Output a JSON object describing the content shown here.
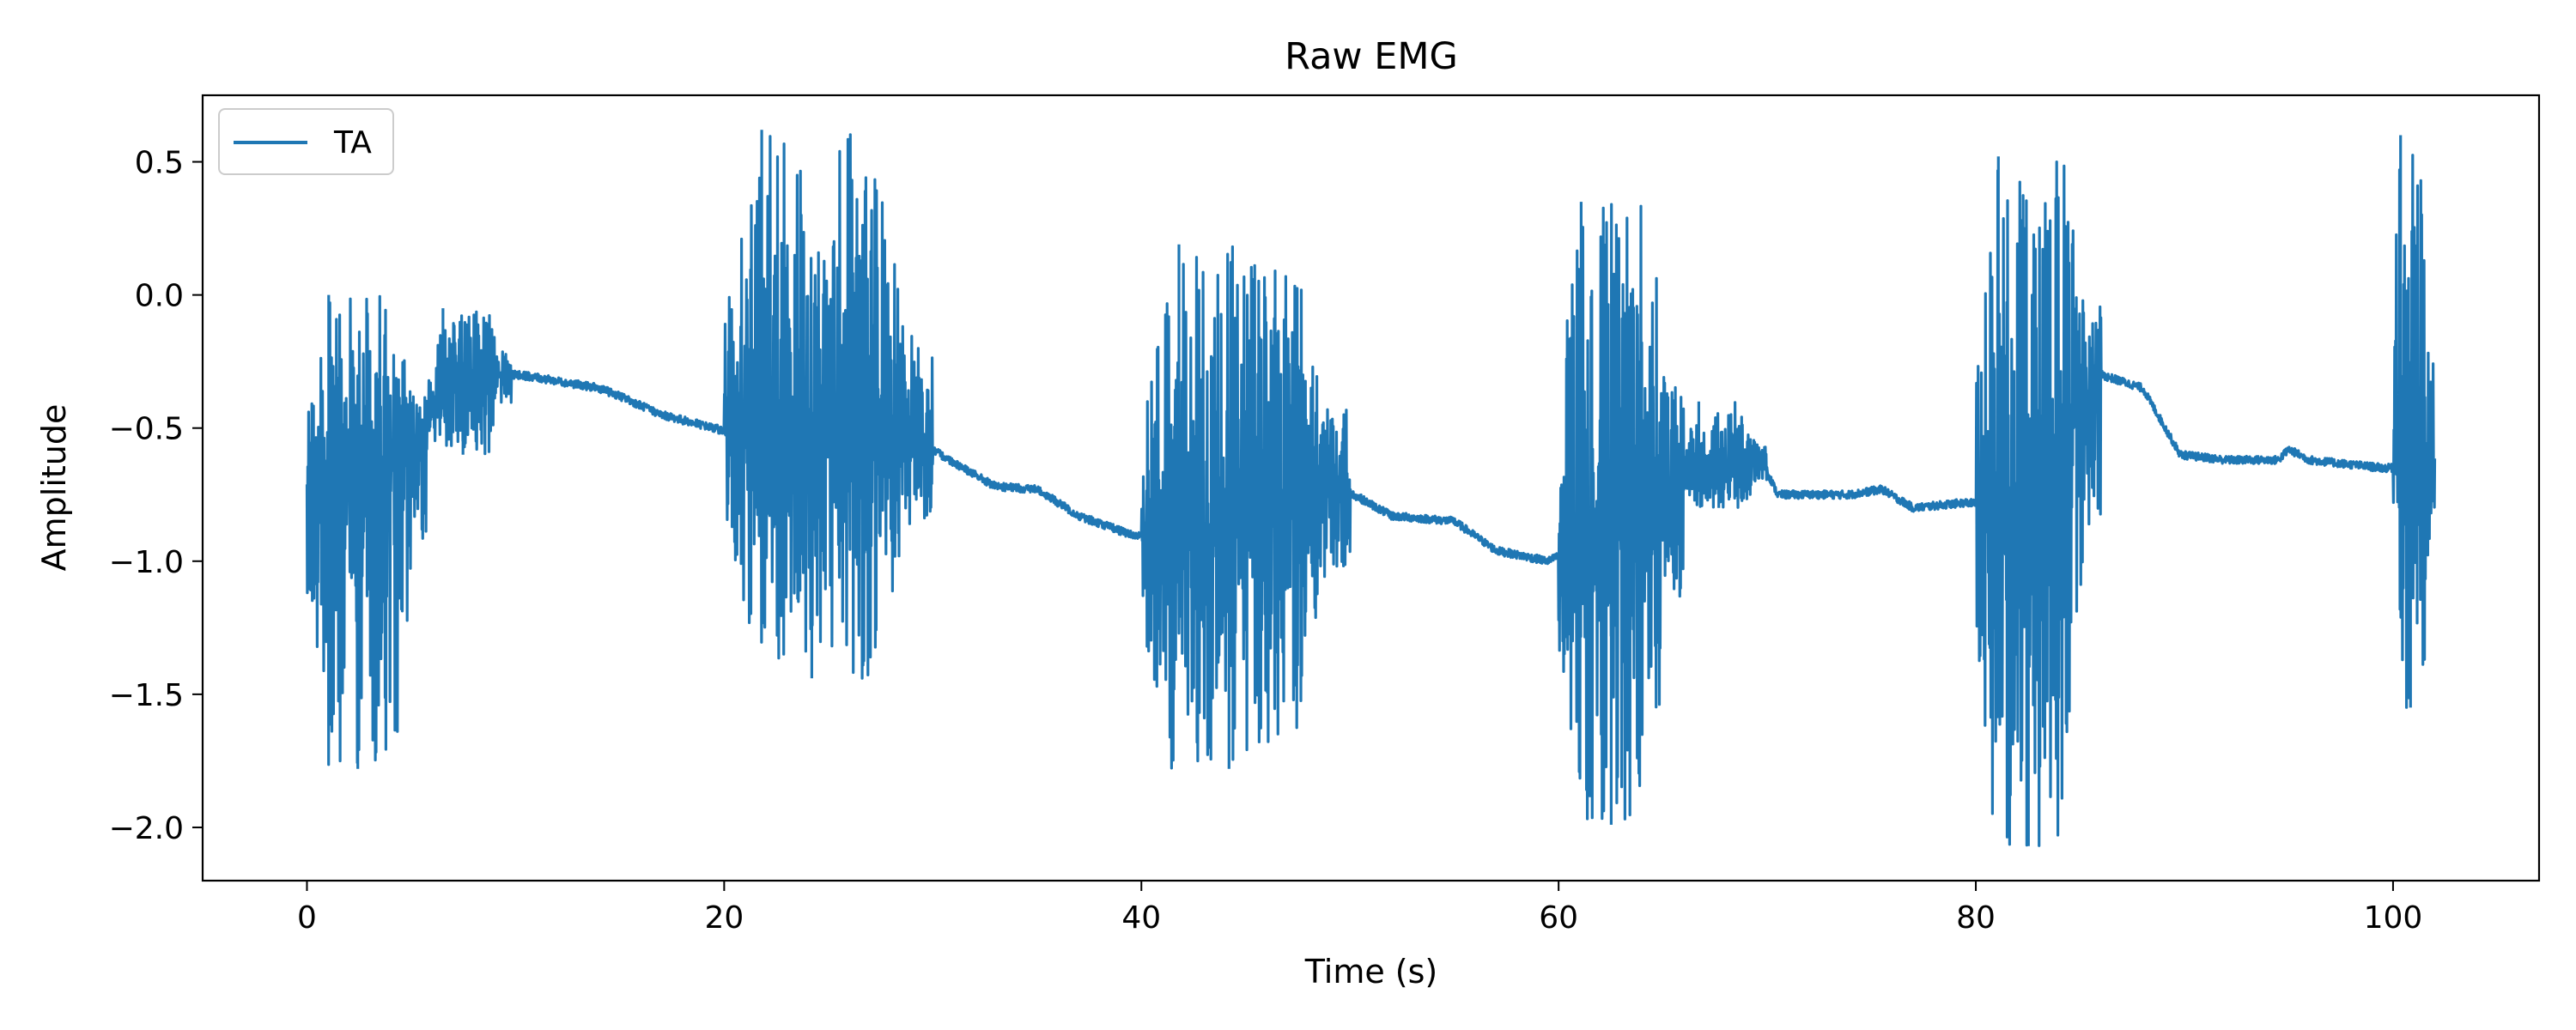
{
  "chart_data": {
    "type": "line",
    "title": "Raw EMG",
    "xlabel": "Time (s)",
    "ylabel": "Amplitude",
    "xlim": [
      -5,
      107
    ],
    "ylim": [
      -2.2,
      0.75
    ],
    "xticks": [
      0,
      20,
      40,
      60,
      80,
      100
    ],
    "yticks": [
      0.5,
      0.0,
      -0.5,
      -1.0,
      -1.5,
      -2.0
    ],
    "xtick_labels": [
      "0",
      "20",
      "40",
      "60",
      "80",
      "100"
    ],
    "ytick_labels": [
      "0.5",
      "0.0",
      "−0.5",
      "−1.0",
      "−1.5",
      "−2.0"
    ],
    "grid": false,
    "legend_position": "upper left",
    "series": [
      {
        "name": "TA",
        "color": "#1f77b4",
        "x_start": 0,
        "x_end": 102,
        "baseline": [
          [
            0,
            -0.75
          ],
          [
            5,
            -0.6
          ],
          [
            7,
            -0.3
          ],
          [
            9.8,
            -0.3
          ],
          [
            10.2,
            -0.3
          ],
          [
            14,
            -0.35
          ],
          [
            15,
            -0.38
          ],
          [
            17,
            -0.45
          ],
          [
            19.5,
            -0.5
          ],
          [
            22,
            -0.55
          ],
          [
            25,
            -0.5
          ],
          [
            29.5,
            -0.56
          ],
          [
            33,
            -0.72
          ],
          [
            35,
            -0.73
          ],
          [
            37,
            -0.83
          ],
          [
            39.5,
            -0.9
          ],
          [
            43,
            -0.92
          ],
          [
            46,
            -0.75
          ],
          [
            49.5,
            -0.72
          ],
          [
            52,
            -0.83
          ],
          [
            55,
            -0.85
          ],
          [
            57,
            -0.96
          ],
          [
            59.5,
            -1.0
          ],
          [
            62,
            -0.9
          ],
          [
            66,
            -0.7
          ],
          [
            69.8,
            -0.63
          ],
          [
            70.5,
            -0.75
          ],
          [
            74,
            -0.75
          ],
          [
            75.5,
            -0.73
          ],
          [
            77,
            -0.8
          ],
          [
            79.5,
            -0.78
          ],
          [
            82,
            -0.8
          ],
          [
            86,
            -0.3
          ],
          [
            88,
            -0.35
          ],
          [
            89.8,
            -0.6
          ],
          [
            92,
            -0.62
          ],
          [
            94.5,
            -0.62
          ],
          [
            95,
            -0.58
          ],
          [
            96,
            -0.62
          ],
          [
            99.5,
            -0.65
          ],
          [
            102,
            -0.65
          ]
        ],
        "bursts": [
          {
            "start": 0,
            "end": 5.8,
            "max": 0.0,
            "min": -1.78
          },
          {
            "start": 5.8,
            "end": 9.8,
            "max": -0.05,
            "min": -0.6
          },
          {
            "start": 20,
            "end": 30,
            "max": 0.62,
            "min": -1.44
          },
          {
            "start": 40,
            "end": 50,
            "max": 0.19,
            "min": -1.78
          },
          {
            "start": 60,
            "end": 66,
            "max": 0.35,
            "min": -1.99
          },
          {
            "start": 66,
            "end": 70,
            "max": -0.4,
            "min": -0.8
          },
          {
            "start": 80,
            "end": 86,
            "max": 0.52,
            "min": -2.07
          },
          {
            "start": 100,
            "end": 102,
            "max": 0.6,
            "min": -1.55
          }
        ]
      }
    ]
  }
}
